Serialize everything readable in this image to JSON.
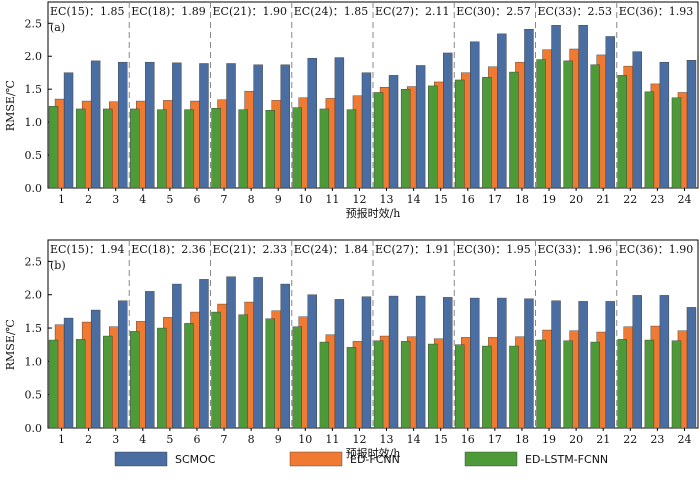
{
  "colors": {
    "SCMOC": "#4a6ea2",
    "ED-FCNN": "#f07a32",
    "ED-LSTM-FCNN": "#4f9a38"
  },
  "chart_data": [
    {
      "type": "bar",
      "panel_label": "(a)",
      "xlabel": "预报时效/h",
      "ylabel": "RMSE/℃",
      "ylim": [
        0,
        2.5
      ],
      "yticks": [
        "0.0",
        "0.5",
        "1.0",
        "1.5",
        "2.0",
        "2.5"
      ],
      "categories": [
        "1",
        "2",
        "3",
        "4",
        "5",
        "6",
        "7",
        "8",
        "9",
        "10",
        "11",
        "12",
        "13",
        "14",
        "15",
        "16",
        "17",
        "18",
        "19",
        "20",
        "21",
        "22",
        "23",
        "24"
      ],
      "group_labels": [
        "EC(15)：1.85",
        "EC(18)：1.89",
        "EC(21)：1.90",
        "EC(24)：1.85",
        "EC(27)：2.11",
        "EC(30)：2.57",
        "EC(33)：2.53",
        "EC(36)：1.93"
      ],
      "series": [
        {
          "name": "SCMOC",
          "values": [
            1.75,
            1.93,
            1.91,
            1.91,
            1.9,
            1.89,
            1.89,
            1.87,
            1.87,
            1.97,
            1.98,
            1.75,
            1.71,
            1.86,
            2.05,
            2.22,
            2.34,
            2.41,
            2.47,
            2.47,
            2.3,
            2.07,
            1.91,
            1.94
          ]
        },
        {
          "name": "ED-FCNN",
          "values": [
            1.35,
            1.32,
            1.31,
            1.32,
            1.33,
            1.32,
            1.34,
            1.47,
            1.33,
            1.37,
            1.36,
            1.4,
            1.53,
            1.54,
            1.61,
            1.75,
            1.84,
            1.91,
            2.1,
            2.11,
            2.02,
            1.85,
            1.58,
            1.45
          ]
        },
        {
          "name": "ED-LSTM-FCNN",
          "values": [
            1.24,
            1.2,
            1.2,
            1.2,
            1.19,
            1.19,
            1.21,
            1.19,
            1.18,
            1.22,
            1.2,
            1.19,
            1.45,
            1.5,
            1.55,
            1.64,
            1.68,
            1.76,
            1.95,
            1.93,
            1.87,
            1.71,
            1.46,
            1.37
          ]
        }
      ]
    },
    {
      "type": "bar",
      "panel_label": "(b)",
      "xlabel": "预报时效/h",
      "ylabel": "RMSE/℃",
      "ylim": [
        0,
        2.5
      ],
      "yticks": [
        "0.0",
        "0.5",
        "1.0",
        "1.5",
        "2.0",
        "2.5"
      ],
      "categories": [
        "1",
        "2",
        "3",
        "4",
        "5",
        "6",
        "7",
        "8",
        "9",
        "10",
        "11",
        "12",
        "13",
        "14",
        "15",
        "16",
        "17",
        "18",
        "19",
        "20",
        "21",
        "22",
        "23",
        "24"
      ],
      "group_labels": [
        "EC(15)：1.94",
        "EC(18)：2.36",
        "EC(21)：2.33",
        "EC(24)：1.84",
        "EC(27)：1.91",
        "EC(30)：1.95",
        "EC(33)：1.96",
        "EC(36)：1.90"
      ],
      "series": [
        {
          "name": "SCMOC",
          "values": [
            1.65,
            1.77,
            1.91,
            2.05,
            2.16,
            2.23,
            2.27,
            2.26,
            2.16,
            2.0,
            1.93,
            1.97,
            1.98,
            1.98,
            1.96,
            1.95,
            1.95,
            1.94,
            1.91,
            1.9,
            1.9,
            1.99,
            1.99,
            1.81
          ]
        },
        {
          "name": "ED-FCNN",
          "values": [
            1.55,
            1.59,
            1.52,
            1.6,
            1.66,
            1.74,
            1.86,
            1.89,
            1.76,
            1.67,
            1.4,
            1.3,
            1.38,
            1.37,
            1.34,
            1.36,
            1.36,
            1.37,
            1.47,
            1.46,
            1.44,
            1.52,
            1.53,
            1.46
          ]
        },
        {
          "name": "ED-LSTM-FCNN",
          "values": [
            1.32,
            1.33,
            1.38,
            1.45,
            1.5,
            1.57,
            1.74,
            1.7,
            1.64,
            1.52,
            1.29,
            1.21,
            1.31,
            1.3,
            1.26,
            1.25,
            1.23,
            1.23,
            1.32,
            1.31,
            1.29,
            1.33,
            1.32,
            1.31
          ]
        }
      ]
    }
  ],
  "legend": [
    "SCMOC",
    "ED-FCNN",
    "ED-LSTM-FCNN"
  ]
}
